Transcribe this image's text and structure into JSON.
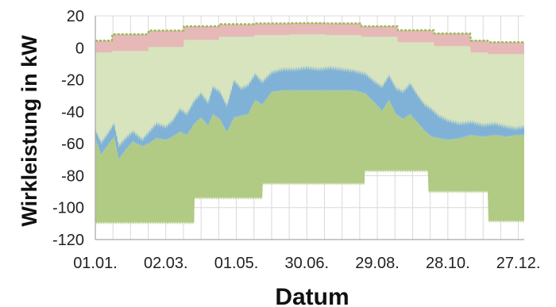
{
  "chart_data": {
    "type": "area",
    "title": "",
    "xlabel": "Datum",
    "ylabel": "Wirkleistung in kW",
    "ylim": [
      -120,
      20
    ],
    "yticks": [
      20,
      0,
      -20,
      -40,
      -60,
      -80,
      -100,
      -120
    ],
    "x_domain": [
      "01.01.",
      "31.12."
    ],
    "xticks": [
      "01.01.",
      "02.03.",
      "01.05.",
      "30.06.",
      "29.08.",
      "28.10.",
      "27.12."
    ],
    "xticks_day": [
      0,
      60,
      120,
      180,
      240,
      300,
      360
    ],
    "grid": true,
    "legend": "none",
    "colors": {
      "upper_top": "#9bbb59",
      "red_band": "#e6b9b8",
      "light_green": "#d7e4bd",
      "blue_band": "#7fb2d6",
      "dark_green": "#b1ca84",
      "grid": "#d9d9d9",
      "axis": "#a6a6a6"
    },
    "series": [
      {
        "role": "top_edge",
        "x": [
          0,
          14,
          14,
          45,
          45,
          75,
          75,
          105,
          105,
          135,
          135,
          165,
          165,
          196,
          196,
          226,
          226,
          257,
          257,
          288,
          288,
          319,
          319,
          334,
          334,
          365
        ],
        "values": [
          4.5,
          4.5,
          8.5,
          8.5,
          10.8,
          10.8,
          13.5,
          13.5,
          14.8,
          14.8,
          15.3,
          15.3,
          15.5,
          15.5,
          15.3,
          15.3,
          13.5,
          13.5,
          11,
          11,
          9,
          9,
          4.5,
          4.5,
          3.5,
          3.5
        ]
      },
      {
        "role": "red_band_bottom",
        "x": [
          0,
          14,
          14,
          45,
          45,
          75,
          75,
          105,
          105,
          135,
          135,
          165,
          165,
          196,
          196,
          226,
          226,
          257,
          257,
          288,
          288,
          319,
          319,
          334,
          334,
          365
        ],
        "values": [
          -3,
          -3,
          -2,
          -2,
          0.5,
          0.5,
          5,
          5,
          7,
          7,
          8,
          8,
          8.5,
          8.5,
          8,
          8,
          7,
          7,
          3.5,
          3.5,
          1,
          1,
          -3,
          -3,
          -4,
          -4
        ]
      },
      {
        "role": "blue_band_top",
        "x": [
          0,
          5,
          10,
          16,
          20,
          26,
          32,
          40,
          46,
          52,
          60,
          66,
          72,
          78,
          84,
          90,
          96,
          100,
          106,
          112,
          118,
          124,
          130,
          136,
          142,
          150,
          160,
          170,
          180,
          190,
          200,
          210,
          220,
          230,
          238,
          244,
          250,
          256,
          262,
          268,
          274,
          280,
          286,
          292,
          300,
          310,
          320,
          330,
          340,
          350,
          358,
          365
        ],
        "values": [
          -52,
          -60,
          -55,
          -48,
          -62,
          -57,
          -53,
          -58,
          -53,
          -48,
          -50,
          -46,
          -39,
          -42,
          -34,
          -29,
          -35,
          -25,
          -28,
          -37,
          -21,
          -26,
          -24,
          -17,
          -22,
          -16,
          -14,
          -14,
          -13,
          -14,
          -13,
          -14,
          -15,
          -17,
          -22,
          -25,
          -18,
          -26,
          -28,
          -23,
          -30,
          -36,
          -39,
          -43,
          -46,
          -48,
          -47,
          -49,
          -48,
          -50,
          -51,
          -50
        ]
      },
      {
        "role": "blue_band_bottom",
        "x": [
          0,
          5,
          10,
          16,
          20,
          26,
          32,
          40,
          46,
          52,
          60,
          66,
          72,
          78,
          84,
          90,
          96,
          100,
          106,
          112,
          118,
          124,
          130,
          136,
          142,
          150,
          160,
          170,
          180,
          190,
          200,
          210,
          220,
          230,
          238,
          244,
          250,
          256,
          262,
          268,
          274,
          280,
          286,
          292,
          300,
          310,
          320,
          330,
          340,
          350,
          358,
          365
        ],
        "values": [
          -56,
          -66,
          -61,
          -55,
          -69,
          -63,
          -58,
          -61,
          -59,
          -56,
          -57,
          -55,
          -52,
          -54,
          -47,
          -43,
          -48,
          -41,
          -44,
          -52,
          -43,
          -42,
          -41,
          -32,
          -35,
          -27,
          -26,
          -26,
          -26,
          -26,
          -26,
          -26,
          -26,
          -28,
          -34,
          -39,
          -32,
          -41,
          -44,
          -41,
          -46,
          -51,
          -55,
          -56,
          -57,
          -56,
          -54,
          -55,
          -54,
          -55,
          -54,
          -54
        ]
      },
      {
        "role": "bottom_edge",
        "x": [
          0,
          84,
          84,
          142,
          142,
          229,
          229,
          283,
          283,
          334,
          334,
          365
        ],
        "values": [
          -110.5,
          -110.5,
          -95,
          -95,
          -86,
          -86,
          -78,
          -78,
          -91,
          -91,
          -109.5,
          -109.5
        ]
      }
    ]
  }
}
